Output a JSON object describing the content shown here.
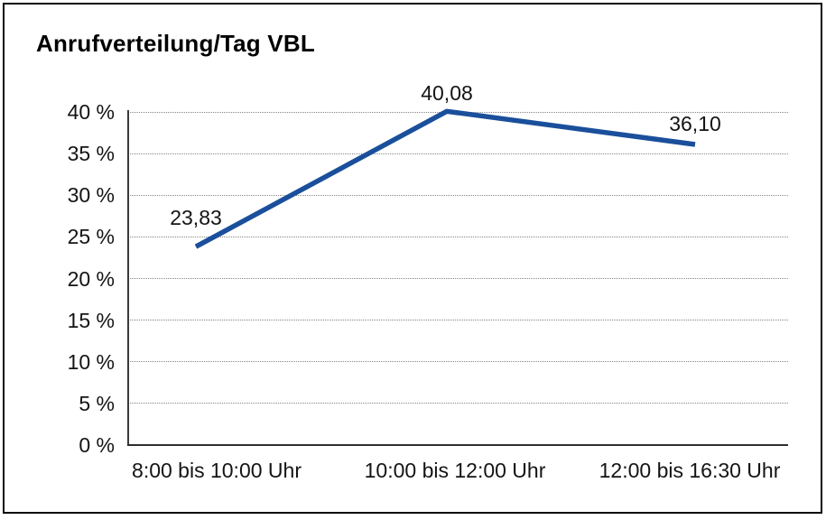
{
  "title": "Anrufverteilung/Tag VBL",
  "chart_data": {
    "type": "line",
    "title": "Anrufverteilung/Tag VBL",
    "categories": [
      "8:00 bis 10:00 Uhr",
      "10:00 bis 12:00 Uhr",
      "12:00 bis 16:30 Uhr"
    ],
    "values": [
      23.83,
      40.08,
      36.1
    ],
    "point_labels": [
      "23,83",
      "40,08",
      "36,10"
    ],
    "y_ticks": [
      "0 %",
      "5 %",
      "10 %",
      "15 %",
      "20 %",
      "25 %",
      "30 %",
      "35 %",
      "40 %"
    ],
    "y_tick_values": [
      0,
      5,
      10,
      15,
      20,
      25,
      30,
      35,
      40
    ],
    "ylim": [
      0,
      40
    ],
    "xlabel": "",
    "ylabel": "",
    "grid": "horizontal-dotted",
    "legend": "none",
    "line_color": "#1A4F9B",
    "frame_color": "#0a0a0a",
    "background": "#ffffff"
  }
}
